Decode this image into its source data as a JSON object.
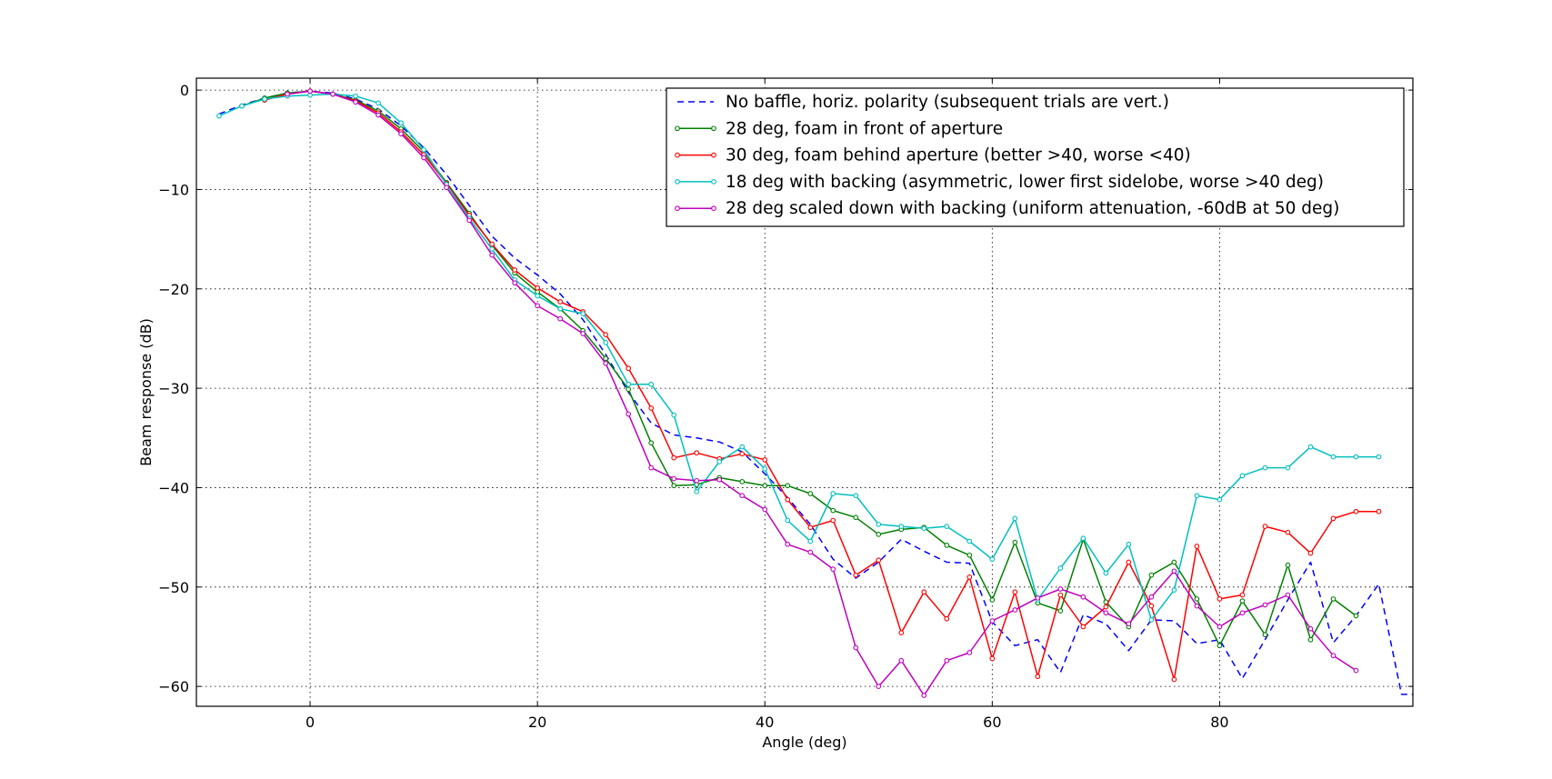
{
  "chart_data": {
    "type": "line",
    "title": "",
    "xlabel": "Angle (deg)",
    "ylabel": "Beam response (dB)",
    "xlim": [
      -10,
      97
    ],
    "ylim": [
      -62,
      1.2
    ],
    "xticks": [
      0,
      20,
      40,
      60,
      80
    ],
    "yticks": [
      0,
      -10,
      -20,
      -30,
      -40,
      -50,
      -60
    ],
    "grid": true,
    "legend_position": "top-right",
    "series": [
      {
        "name": "No baffle, horiz. polarity (subsequent trials are vert.)",
        "color": "#0000ff",
        "style": "dashed",
        "markers": false,
        "x": [
          -8,
          -6,
          -4,
          -2,
          0,
          2,
          4,
          6,
          8,
          10,
          12,
          14,
          16,
          18,
          20,
          22,
          24,
          26,
          28,
          30,
          32,
          34,
          36,
          38,
          40,
          42,
          44,
          46,
          48,
          50,
          52,
          54,
          56,
          58,
          60,
          62,
          64,
          66,
          68,
          70,
          72,
          74,
          76,
          78,
          80,
          82,
          84,
          86,
          88,
          90,
          92,
          94,
          96,
          98
        ],
        "y": [
          -2.4,
          -1.5,
          -0.8,
          -0.3,
          -0.1,
          -0.3,
          -0.9,
          -1.9,
          -3.6,
          -5.8,
          -8.5,
          -11.6,
          -14.7,
          -16.9,
          -18.6,
          -20.5,
          -23.1,
          -26.6,
          -30.4,
          -33.5,
          -34.7,
          -35.0,
          -35.4,
          -36.4,
          -38.6,
          -41.0,
          -43.7,
          -47.2,
          -49.1,
          -47.5,
          -45.2,
          -46.4,
          -47.5,
          -47.6,
          -53.5,
          -55.9,
          -55.3,
          -58.6,
          -52.8,
          -53.7,
          -56.4,
          -53.3,
          -53.4,
          -55.7,
          -55.3,
          -59.2,
          -55.3,
          -51.3,
          -47.5,
          -55.6,
          -52.9,
          -49.7,
          -60.8,
          -60.8
        ]
      },
      {
        "name": "28 deg, foam in front of aperture",
        "color": "#008000",
        "style": "solid",
        "markers": true,
        "x": [
          -6,
          -4,
          -2,
          0,
          2,
          4,
          6,
          8,
          10,
          12,
          14,
          16,
          18,
          20,
          22,
          24,
          26,
          28,
          30,
          32,
          34,
          36,
          38,
          40,
          42,
          44,
          46,
          48,
          50,
          52,
          54,
          56,
          58,
          60,
          62,
          64,
          66,
          68,
          70,
          72,
          74,
          76,
          78,
          80,
          82,
          84,
          86,
          88,
          90,
          92
        ],
        "y": [
          -1.6,
          -0.8,
          -0.3,
          -0.1,
          -0.4,
          -1.0,
          -2.1,
          -3.9,
          -6.2,
          -9.3,
          -12.4,
          -15.6,
          -18.4,
          -20.3,
          -22.0,
          -24.2,
          -27.0,
          -30.1,
          -35.5,
          -39.8,
          -39.7,
          -39.0,
          -39.4,
          -39.8,
          -39.8,
          -40.6,
          -42.3,
          -43.0,
          -44.7,
          -44.2,
          -44.0,
          -45.8,
          -46.8,
          -51.3,
          -45.5,
          -51.6,
          -52.4,
          -45.2,
          -51.5,
          -54.0,
          -48.8,
          -47.5,
          -51.2,
          -55.9,
          -51.4,
          -54.8,
          -47.8,
          -55.3,
          -51.2,
          -52.9
        ]
      },
      {
        "name": "30 deg, foam behind aperture (better >40, worse <40)",
        "color": "#ff0000",
        "style": "solid",
        "markers": true,
        "x": [
          -4,
          -2,
          0,
          2,
          4,
          6,
          8,
          10,
          12,
          14,
          16,
          18,
          20,
          22,
          24,
          26,
          28,
          30,
          32,
          34,
          36,
          38,
          40,
          42,
          44,
          46,
          48,
          50,
          52,
          54,
          56,
          58,
          60,
          62,
          64,
          66,
          68,
          70,
          72,
          74,
          76,
          78,
          80,
          82,
          84,
          86,
          88,
          90,
          92,
          94
        ],
        "y": [
          -1.0,
          -0.4,
          -0.1,
          -0.4,
          -1.1,
          -2.3,
          -4.2,
          -6.5,
          -9.4,
          -12.6,
          -15.5,
          -18.1,
          -19.9,
          -21.3,
          -22.3,
          -24.6,
          -28.0,
          -32.0,
          -37.0,
          -36.5,
          -37.1,
          -36.6,
          -37.2,
          -41.2,
          -44.0,
          -43.3,
          -48.8,
          -47.3,
          -54.6,
          -50.5,
          -53.2,
          -49.0,
          -57.2,
          -50.5,
          -59.0,
          -50.8,
          -54.0,
          -52.0,
          -47.5,
          -51.9,
          -59.3,
          -45.9,
          -51.2,
          -50.8,
          -43.9,
          -44.5,
          -46.6,
          -43.1,
          -42.4,
          -42.4
        ]
      },
      {
        "name": "18 deg with backing (asymmetric, lower first sidelobe, worse >40 deg)",
        "color": "#00bfbf",
        "style": "solid",
        "markers": true,
        "x": [
          -8,
          -6,
          -4,
          -2,
          0,
          2,
          4,
          6,
          8,
          10,
          12,
          14,
          16,
          18,
          20,
          22,
          24,
          26,
          28,
          30,
          32,
          34,
          36,
          38,
          40,
          42,
          44,
          46,
          48,
          50,
          52,
          54,
          56,
          58,
          60,
          62,
          64,
          66,
          68,
          70,
          72,
          74,
          76,
          78,
          80,
          82,
          84,
          86,
          88,
          90,
          92,
          94
        ],
        "y": [
          -2.6,
          -1.6,
          -0.9,
          -0.6,
          -0.5,
          -0.4,
          -0.6,
          -1.3,
          -3.3,
          -6.0,
          -9.5,
          -12.9,
          -16.0,
          -19.1,
          -20.7,
          -22.0,
          -22.5,
          -25.4,
          -29.6,
          -29.6,
          -32.7,
          -40.4,
          -37.4,
          -35.9,
          -38.1,
          -43.3,
          -45.4,
          -40.6,
          -40.8,
          -43.7,
          -43.9,
          -44.1,
          -43.9,
          -45.4,
          -47.2,
          -43.1,
          -51.3,
          -48.1,
          -45.1,
          -48.6,
          -45.7,
          -53.3,
          -50.3,
          -40.8,
          -41.2,
          -38.8,
          -38.0,
          -38.0,
          -35.9,
          -36.9,
          -36.9,
          -36.9
        ]
      },
      {
        "name": "28 deg scaled down with backing (uniform attenuation, -60dB at 50 deg)",
        "color": "#bf00bf",
        "style": "solid",
        "markers": true,
        "x": [
          -2,
          0,
          2,
          4,
          6,
          8,
          10,
          12,
          14,
          16,
          18,
          20,
          22,
          24,
          26,
          28,
          30,
          32,
          34,
          36,
          38,
          40,
          42,
          44,
          46,
          48,
          50,
          52,
          54,
          56,
          58,
          60,
          62,
          64,
          66,
          68,
          70,
          72,
          74,
          76,
          78,
          80,
          82,
          84,
          86,
          88,
          90,
          92
        ],
        "y": [
          -0.4,
          -0.1,
          -0.4,
          -1.2,
          -2.5,
          -4.4,
          -6.8,
          -9.8,
          -13.1,
          -16.6,
          -19.4,
          -21.7,
          -23.0,
          -24.5,
          -27.5,
          -32.6,
          -38.0,
          -39.1,
          -39.3,
          -39.2,
          -40.8,
          -42.2,
          -45.7,
          -46.5,
          -48.2,
          -56.1,
          -60.0,
          -57.4,
          -60.9,
          -57.4,
          -56.6,
          -53.4,
          -52.3,
          -51.1,
          -50.2,
          -51.0,
          -52.6,
          -53.7,
          -51.0,
          -48.4,
          -51.9,
          -54.0,
          -52.6,
          -51.8,
          -50.8,
          -54.2,
          -56.9,
          -58.4
        ]
      }
    ]
  }
}
